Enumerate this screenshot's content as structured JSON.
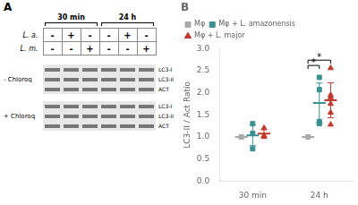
{
  "chart_data": [
    {
      "type": "table",
      "title": "A",
      "column_groups": [
        "30 min",
        "24 h"
      ],
      "row_labels": [
        "L. a.",
        "L. m."
      ],
      "cells": [
        [
          "-",
          "+",
          "-",
          "-",
          "+",
          "-"
        ],
        [
          "-",
          "-",
          "+",
          "-",
          "-",
          "+"
        ]
      ],
      "blots": [
        {
          "name": "- Chloroq",
          "bands": [
            "LC3-I",
            "LC3-II",
            "ACT"
          ]
        },
        {
          "name": "+ Chloroq",
          "bands": [
            "LC3-I",
            "LC3-II",
            "ACT"
          ]
        }
      ]
    },
    {
      "type": "scatter",
      "title": "B",
      "ylabel": "LC3-II / Act Ratio",
      "categories": [
        "30 min",
        "24 h"
      ],
      "ylim": [
        0.0,
        3.0
      ],
      "yticks": [
        {
          "value": 0,
          "label": "0.0"
        },
        0.5,
        {
          "value": 1,
          "label": "1.0"
        },
        1.5,
        {
          "value": 2,
          "label": "2.0"
        },
        2.5,
        {
          "value": 3,
          "label": "3.0"
        }
      ],
      "grid": false,
      "legend": "upper left",
      "series": [
        {
          "name": "Mφ",
          "color": "#aaaaaa",
          "marker": "square",
          "values": [
            [
              1.0,
              1.0
            ],
            [
              1.0
            ]
          ],
          "means": [
            1.0,
            1.0
          ],
          "errors": [
            0.0,
            0.0
          ]
        },
        {
          "name": "Mφ + L. amazonensis",
          "color": "#3a9090",
          "marker": "square",
          "values": [
            [
              1.3,
              0.73,
              1.08
            ],
            [
              1.3,
              2.35,
              2.07,
              1.35
            ]
          ],
          "means": [
            1.0367,
            1.7675
          ],
          "errors": [
            0.2347,
            0.4538
          ]
        },
        {
          "name": "Mφ + L. major",
          "color": "#c0392b",
          "marker": "triangle",
          "values": [
            [
              1.03,
              1.0,
              1.2
            ],
            [
              1.9,
              2.56,
              1.95,
              1.75,
              1.55,
              1.28
            ]
          ],
          "means": [
            1.0767,
            1.8317
          ],
          "errors": [
            0.0881,
            0.3957
          ]
        }
      ],
      "significance": [
        {
          "category": "24 h",
          "series": [
            "Mφ",
            "Mφ + L. amazonensis"
          ],
          "y": 2.62,
          "label": "*"
        },
        {
          "category": "24 h",
          "series": [
            "Mφ",
            "Mφ + L. major"
          ],
          "y": 2.74,
          "label": "*"
        }
      ]
    }
  ]
}
